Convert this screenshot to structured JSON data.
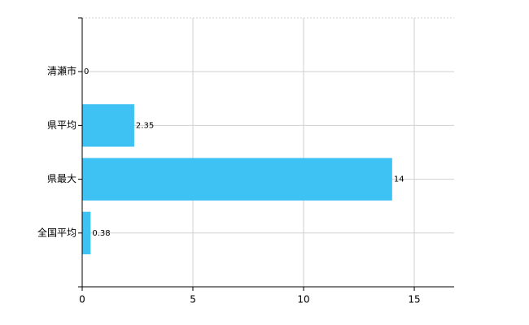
{
  "chart_data": {
    "type": "bar",
    "orientation": "horizontal",
    "categories": [
      "清瀬市",
      "県平均",
      "県最大",
      "全国平均"
    ],
    "values": [
      0,
      2.35,
      14,
      0.38
    ],
    "color": "#3ec1f3",
    "xlim": [
      0,
      16.8
    ],
    "xticks": [
      0,
      5,
      10,
      15
    ],
    "grid": true,
    "data_labels": true
  }
}
